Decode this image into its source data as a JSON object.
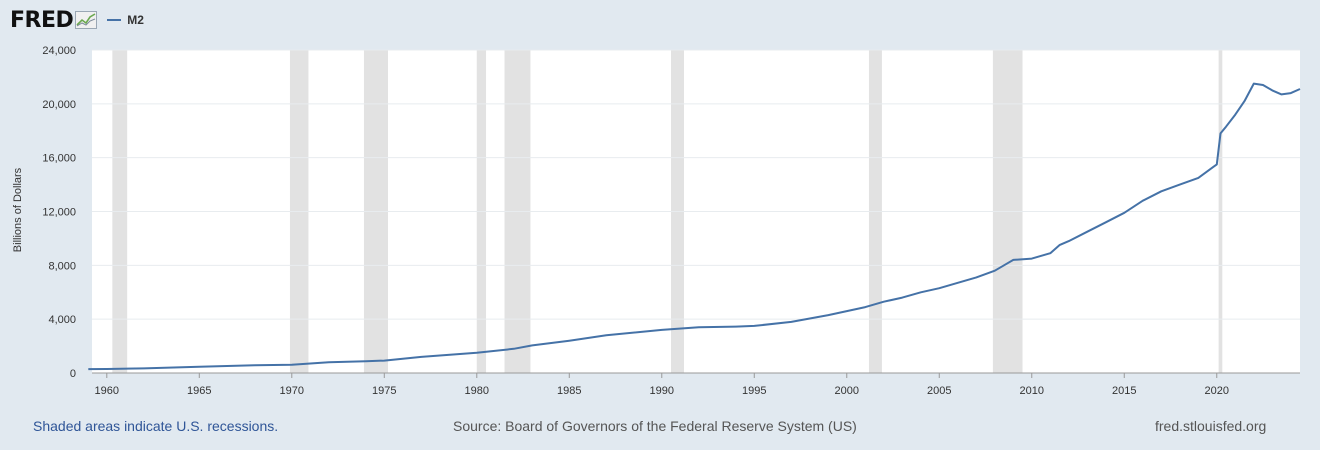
{
  "header": {
    "logo_text": "FRED",
    "legend_label": "M2",
    "legend_color": "#4572a7"
  },
  "footer": {
    "recession_note": "Shaded areas indicate U.S. recessions.",
    "source": "Source: Board of Governors of the Federal Reserve System (US)",
    "site": "fred.stlouisfed.org"
  },
  "colors": {
    "background": "#e1e9f0",
    "plot": "#ffffff",
    "series": "#4572a7",
    "recession": "#e2e2e2"
  },
  "chart_data": {
    "type": "line",
    "title": "",
    "xlabel": "",
    "ylabel": "Billions of Dollars",
    "xlim": [
      1959.2,
      2024.5
    ],
    "ylim": [
      0,
      24000
    ],
    "yticks": [
      0,
      4000,
      8000,
      12000,
      16000,
      20000,
      24000
    ],
    "ytick_labels": [
      "0",
      "4,000",
      "8,000",
      "12,000",
      "16,000",
      "20,000",
      "24,000"
    ],
    "xticks": [
      1960,
      1965,
      1970,
      1975,
      1980,
      1985,
      1990,
      1995,
      2000,
      2005,
      2010,
      2015,
      2020
    ],
    "xtick_labels": [
      "1960",
      "1965",
      "1970",
      "1975",
      "1980",
      "1985",
      "1990",
      "1995",
      "2000",
      "2005",
      "2010",
      "2015",
      "2020"
    ],
    "grid": "horizontal",
    "legend_position": "top-left",
    "recessions": [
      [
        1960.3,
        1961.1
      ],
      [
        1969.9,
        1970.9
      ],
      [
        1973.9,
        1975.2
      ],
      [
        1980.0,
        1980.5
      ],
      [
        1981.5,
        1982.9
      ],
      [
        1990.5,
        1991.2
      ],
      [
        2001.2,
        2001.9
      ],
      [
        2007.9,
        2009.5
      ],
      [
        2020.1,
        2020.3
      ]
    ],
    "series": [
      {
        "name": "M2",
        "color": "#4572a7",
        "x": [
          1959,
          1960,
          1962,
          1965,
          1968,
          1970,
          1972,
          1974,
          1975,
          1977,
          1980,
          1982,
          1983,
          1985,
          1987,
          1990,
          1992,
          1994,
          1995,
          1997,
          1999,
          2000,
          2001,
          2002,
          2003,
          2004,
          2005,
          2006,
          2007,
          2008,
          2008.5,
          2009,
          2010,
          2011,
          2011.5,
          2012,
          2013,
          2014,
          2015,
          2016,
          2017,
          2018,
          2019,
          2019.8,
          2020,
          2020.2,
          2020.5,
          2021,
          2021.5,
          2022,
          2022.5,
          2023,
          2023.5,
          2024,
          2024.5
        ],
        "y": [
          290,
          300,
          340,
          460,
          570,
          620,
          800,
          880,
          920,
          1200,
          1500,
          1800,
          2050,
          2400,
          2800,
          3200,
          3400,
          3450,
          3500,
          3800,
          4300,
          4600,
          4900,
          5300,
          5600,
          6000,
          6300,
          6700,
          7100,
          7600,
          8000,
          8400,
          8500,
          8900,
          9500,
          9800,
          10500,
          11200,
          11900,
          12800,
          13500,
          14000,
          14500,
          15300,
          15500,
          17800,
          18300,
          19200,
          20200,
          21500,
          21400,
          21000,
          20700,
          20800,
          21100
        ]
      }
    ]
  }
}
